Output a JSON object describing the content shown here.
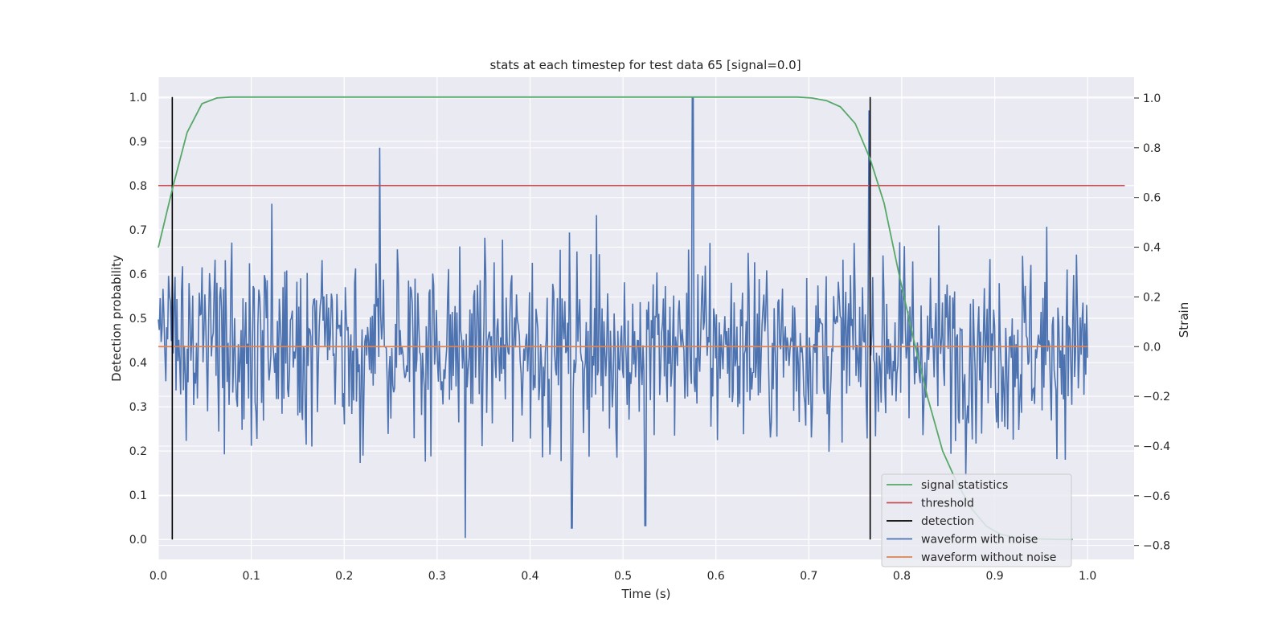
{
  "chart_data": {
    "type": "line",
    "title": "stats at each timestep for test data 65 [signal=0.0]",
    "xlabel": "Time (s)",
    "ylabel": "Detection probability",
    "y2label": "Strain",
    "xlim": [
      0.0,
      1.05
    ],
    "ylim": [
      -0.045,
      1.045
    ],
    "y2lim": [
      -0.856,
      1.084
    ],
    "xticks": [
      "0.0",
      "0.1",
      "0.2",
      "0.3",
      "0.4",
      "0.5",
      "0.6",
      "0.7",
      "0.8",
      "0.9",
      "1.0"
    ],
    "yticks": [
      "0.0",
      "0.1",
      "0.2",
      "0.3",
      "0.4",
      "0.5",
      "0.6",
      "0.7",
      "0.8",
      "0.9",
      "1.0"
    ],
    "y2ticks": [
      "−0.8",
      "−0.6",
      "−0.4",
      "−0.2",
      "0.0",
      "0.2",
      "0.4",
      "0.6",
      "0.8",
      "1.0"
    ],
    "grid": true,
    "legend_position": "lower-right",
    "series": [
      {
        "name": "signal statistics",
        "axis": "left",
        "color": "#55a868",
        "x": [
          0.0,
          0.016,
          0.031,
          0.047,
          0.063,
          0.078,
          0.094,
          0.2,
          0.4,
          0.6,
          0.688,
          0.703,
          0.719,
          0.734,
          0.75,
          0.766,
          0.781,
          0.797,
          0.813,
          0.828,
          0.844,
          0.859,
          0.875,
          0.891,
          0.906,
          0.922,
          0.938,
          0.953,
          0.969,
          0.984
        ],
        "values": [
          0.66,
          0.8,
          0.92,
          0.985,
          0.998,
          1.0,
          1.0,
          1.0,
          1.0,
          1.0,
          1.0,
          0.998,
          0.992,
          0.978,
          0.94,
          0.86,
          0.76,
          0.6,
          0.45,
          0.32,
          0.2,
          0.13,
          0.07,
          0.03,
          0.012,
          0.005,
          0.002,
          0.001,
          0.0,
          0.0
        ]
      },
      {
        "name": "threshold",
        "axis": "left",
        "color": "#c44e52",
        "x": [
          0.0,
          1.04
        ],
        "values": [
          0.8,
          0.8
        ]
      },
      {
        "name": "detection",
        "axis": "left",
        "color": "#000000",
        "x_positions": [
          0.015,
          0.766
        ],
        "values": [
          0.0,
          1.0
        ]
      },
      {
        "name": "waveform with noise",
        "axis": "right",
        "color": "#4c72b0",
        "x_range": [
          0.0,
          1.0
        ],
        "samples": 1000,
        "std": 0.19,
        "peaks": [
          {
            "x": 0.575,
            "value": 1.0
          },
          {
            "x": 0.765,
            "value": 0.95
          },
          {
            "x": 0.238,
            "value": 0.8
          },
          {
            "x": 0.33,
            "value": -0.77
          },
          {
            "x": 0.524,
            "value": -0.72
          },
          {
            "x": 0.445,
            "value": -0.73
          }
        ]
      },
      {
        "name": "waveform without noise",
        "axis": "right",
        "color": "#dd8452",
        "x": [
          0.0,
          1.0
        ],
        "values": [
          0.0,
          0.0
        ]
      }
    ]
  }
}
